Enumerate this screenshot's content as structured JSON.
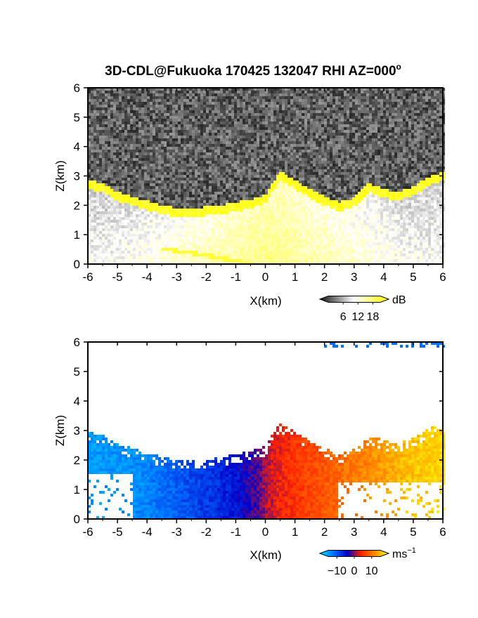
{
  "title": "3D-CDL@Fukuoka 170425 132047 RHI AZ=000",
  "title_superscript": "o",
  "chart_data": [
    {
      "type": "heatmap",
      "name": "reflectivity",
      "x_range": [
        -6,
        6
      ],
      "y_range": [
        0,
        6
      ],
      "x_ticks": [
        "-6",
        "-5",
        "-4",
        "-3",
        "-2",
        "-1",
        "0",
        "1",
        "2",
        "3",
        "4",
        "5",
        "6"
      ],
      "y_ticks": [
        "0",
        "1",
        "2",
        "3",
        "4",
        "5",
        "6"
      ],
      "xlabel": "X(km)",
      "ylabel": "Z(km)",
      "colorbar": {
        "unit": "dB",
        "ticks": [
          "6",
          "12",
          "18"
        ],
        "tick_values": [
          6,
          12,
          18
        ],
        "range": [
          0,
          21
        ],
        "colors": [
          "#111111",
          "#ffffff",
          "#ffff00"
        ]
      },
      "cloud_base_km": [
        [
          -6.0,
          2.6
        ],
        [
          -5.5,
          2.5
        ],
        [
          -5.0,
          2.2
        ],
        [
          -4.5,
          2.05
        ],
        [
          -4.0,
          1.9
        ],
        [
          -3.5,
          1.75
        ],
        [
          -3.0,
          1.65
        ],
        [
          -2.5,
          1.65
        ],
        [
          -2.0,
          1.7
        ],
        [
          -1.5,
          1.75
        ],
        [
          -1.0,
          1.85
        ],
        [
          -0.5,
          1.95
        ],
        [
          0.0,
          2.1
        ],
        [
          0.3,
          2.6
        ],
        [
          0.5,
          2.9
        ],
        [
          1.0,
          2.6
        ],
        [
          1.5,
          2.3
        ],
        [
          2.0,
          2.05
        ],
        [
          2.5,
          1.85
        ],
        [
          3.0,
          2.0
        ],
        [
          3.5,
          2.5
        ],
        [
          4.0,
          2.3
        ],
        [
          4.5,
          2.2
        ],
        [
          5.0,
          2.4
        ],
        [
          5.5,
          2.7
        ],
        [
          6.0,
          2.9
        ]
      ],
      "ground_echo_km": [
        [
          -3.4,
          0.5
        ],
        [
          -2.0,
          0.3
        ],
        [
          -1.0,
          0.1
        ],
        [
          -0.5,
          0.02
        ]
      ]
    },
    {
      "type": "heatmap",
      "name": "doppler_velocity",
      "x_range": [
        -6,
        6
      ],
      "y_range": [
        0,
        6
      ],
      "x_ticks": [
        "-6",
        "-5",
        "-4",
        "-3",
        "-2",
        "-1",
        "0",
        "1",
        "2",
        "3",
        "4",
        "5",
        "6"
      ],
      "y_ticks": [
        "0",
        "1",
        "2",
        "3",
        "4",
        "5",
        "6"
      ],
      "xlabel": "X(km)",
      "ylabel": "Z(km)",
      "colorbar": {
        "unit": "ms",
        "unit_superscript": "−1",
        "ticks": [
          "−10",
          "0",
          "10"
        ],
        "tick_values": [
          -10,
          0,
          10
        ],
        "range": [
          -15,
          15
        ],
        "colors": [
          "#00e5ff",
          "#0070ff",
          "#0000cc",
          "#ff2000",
          "#ff8c00",
          "#ffff00"
        ]
      },
      "velocity_by_x_ms": [
        [
          -6.0,
          -11
        ],
        [
          -5.0,
          -11
        ],
        [
          -4.0,
          -10
        ],
        [
          -3.0,
          -8
        ],
        [
          -2.0,
          -6
        ],
        [
          -1.0,
          -4
        ],
        [
          -0.2,
          -1
        ],
        [
          0.0,
          1
        ],
        [
          0.5,
          3
        ],
        [
          1.0,
          4
        ],
        [
          2.0,
          6
        ],
        [
          3.0,
          8
        ],
        [
          4.0,
          10
        ],
        [
          5.0,
          12
        ],
        [
          6.0,
          13
        ]
      ]
    }
  ]
}
